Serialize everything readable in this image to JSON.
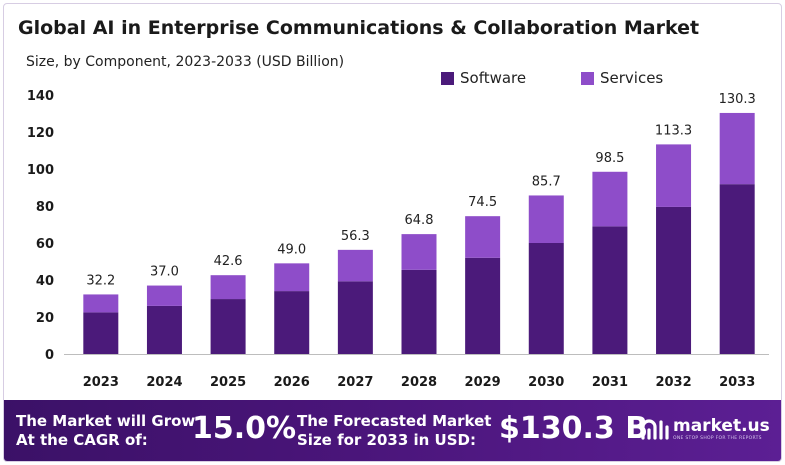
{
  "chart_data": {
    "type": "bar",
    "stacked": true,
    "title": "Global AI in Enterprise Communications  & Collaboration  Market",
    "subtitle": "Size, by Component, 2023-2033 (USD Billion)",
    "categories": [
      "2023",
      "2024",
      "2025",
      "2026",
      "2027",
      "2028",
      "2029",
      "2030",
      "2031",
      "2032",
      "2033"
    ],
    "series": [
      {
        "name": "Software",
        "color": "#4b1a7a",
        "values": [
          22.5,
          26.0,
          29.7,
          34.0,
          39.3,
          45.5,
          52.0,
          60.0,
          69.0,
          79.5,
          91.8
        ]
      },
      {
        "name": "Services",
        "color": "#8e4dc9",
        "values": [
          9.7,
          11.0,
          12.9,
          15.0,
          17.0,
          19.3,
          22.5,
          25.7,
          29.5,
          33.8,
          38.5
        ]
      }
    ],
    "totals": [
      "32.2",
      "37.0",
      "42.6",
      "49.0",
      "56.3",
      "64.8",
      "74.5",
      "85.7",
      "98.5",
      "113.3",
      "130.3"
    ],
    "yticks": [
      "0",
      "20",
      "40",
      "60",
      "80",
      "100",
      "120",
      "140"
    ],
    "ylim": [
      0,
      140
    ],
    "legend_position": "top-right",
    "grid": false
  },
  "banner": {
    "cagr_label": "The Market will Grow At the CAGR of:",
    "cagr_value": "15.0%",
    "forecast_label": "The Forecasted Market Size for 2033 in USD:",
    "forecast_value": "$130.3 B",
    "brand_name": "market.us",
    "brand_tagline": "ONE STOP SHOP FOR THE REPORTS",
    "brand_icon": "market-us-logo-icon"
  }
}
